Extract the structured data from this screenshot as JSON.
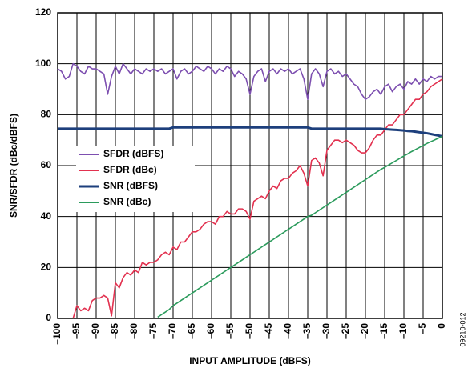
{
  "chart_data": {
    "type": "line",
    "xlabel": "INPUT AMPLITUDE (dBFS)",
    "ylabel": "SNR/SFDR (dBc/dBFS)",
    "annotation": "09210-012",
    "xlim": [
      -100,
      0
    ],
    "ylim": [
      0,
      120
    ],
    "grid": true,
    "legend": "left",
    "xticks": [
      {
        "value": -100,
        "label": "–100"
      },
      {
        "value": -95,
        "label": "–95"
      },
      {
        "value": -90,
        "label": "–90"
      },
      {
        "value": -85,
        "label": "–85"
      },
      {
        "value": -80,
        "label": "–80"
      },
      {
        "value": -75,
        "label": "–75"
      },
      {
        "value": -70,
        "label": "–70"
      },
      {
        "value": -65,
        "label": "–65"
      },
      {
        "value": -60,
        "label": "–60"
      },
      {
        "value": -55,
        "label": "–55"
      },
      {
        "value": -50,
        "label": "–50"
      },
      {
        "value": -45,
        "label": "–45"
      },
      {
        "value": -40,
        "label": "–40"
      },
      {
        "value": -35,
        "label": "–35"
      },
      {
        "value": -30,
        "label": "–30"
      },
      {
        "value": -25,
        "label": "–25"
      },
      {
        "value": -20,
        "label": "–20"
      },
      {
        "value": -15,
        "label": "–15"
      },
      {
        "value": -10,
        "label": "–10"
      },
      {
        "value": -5,
        "label": "–5"
      },
      0
    ],
    "yticks": [
      0,
      20,
      40,
      60,
      80,
      100,
      120
    ],
    "x": [
      -100,
      -99,
      -98,
      -97,
      -96,
      -95,
      -94,
      -93,
      -92,
      -91,
      -90,
      -89,
      -88,
      -87,
      -86,
      -85,
      -84,
      -83,
      -82,
      -81,
      -80,
      -79,
      -78,
      -77,
      -76,
      -75,
      -74,
      -73,
      -72,
      -71,
      -70,
      -69,
      -68,
      -67,
      -66,
      -65,
      -64,
      -63,
      -62,
      -61,
      -60,
      -59,
      -58,
      -57,
      -56,
      -55,
      -54,
      -53,
      -52,
      -51,
      -50,
      -49,
      -48,
      -47,
      -46,
      -45,
      -44,
      -43,
      -42,
      -41,
      -40,
      -39,
      -38,
      -37,
      -36,
      -35,
      -34,
      -33,
      -32,
      -31,
      -30,
      -29,
      -28,
      -27,
      -26,
      -25,
      -24,
      -23,
      -22,
      -21,
      -20,
      -19,
      -18,
      -17,
      -16,
      -15,
      -14,
      -13,
      -12,
      -11,
      -10,
      -9,
      -8,
      -7,
      -6,
      -5,
      -4,
      -3,
      -2,
      -1,
      0
    ],
    "series": [
      {
        "name": "SFDR (dBFS)",
        "color": "#7d4fb0",
        "values": [
          98,
          97,
          94,
          95,
          100,
          99,
          97,
          96,
          99,
          98,
          98,
          97,
          96,
          88,
          95,
          99,
          96,
          100,
          98,
          96,
          98,
          97,
          96,
          98,
          97,
          98,
          97,
          98,
          96,
          97,
          98,
          94,
          97,
          98,
          96,
          97,
          99,
          98,
          97,
          99,
          98,
          96,
          98,
          97,
          99,
          98,
          95,
          97,
          96,
          94,
          88,
          95,
          97,
          98,
          93,
          97,
          98,
          96,
          98,
          97,
          98,
          96,
          97,
          98,
          94,
          86,
          96,
          98,
          96,
          91,
          97,
          98,
          96,
          97,
          95,
          96,
          94,
          92,
          91,
          88,
          86,
          87,
          89,
          90,
          88,
          91,
          92,
          89,
          91,
          92,
          90,
          93,
          92,
          94,
          92,
          94,
          93,
          95,
          94,
          95,
          95
        ]
      },
      {
        "name": "SFDR (dBc)",
        "color": "#e2314f",
        "values": [
          null,
          null,
          null,
          null,
          0,
          5,
          3,
          4,
          3,
          7,
          8,
          8,
          9,
          8,
          1,
          14,
          12,
          16,
          18,
          17,
          19,
          18,
          22,
          21,
          22,
          22,
          23,
          25,
          26,
          25,
          28,
          27,
          30,
          30,
          32,
          34,
          34,
          35,
          37,
          38,
          38,
          37,
          40,
          40,
          42,
          41,
          41,
          43,
          43,
          42,
          39,
          46,
          47,
          48,
          47,
          50,
          52,
          51,
          54,
          55,
          55,
          57,
          58,
          60,
          57,
          52,
          62,
          63,
          61,
          56,
          66,
          68,
          70,
          70,
          69,
          70,
          69,
          68,
          66,
          65,
          65,
          67,
          70,
          72,
          72,
          74,
          76,
          76,
          78,
          80,
          80,
          82,
          84,
          86,
          86,
          88,
          89,
          91,
          92,
          93,
          94
        ]
      },
      {
        "name": "SNR (dBFS)",
        "color": "#1d3f7c",
        "values": [
          74.5,
          74.5,
          74.5,
          74.5,
          74.5,
          74.5,
          74.5,
          74.5,
          74.5,
          74.5,
          74.5,
          74.5,
          74.5,
          74.5,
          74.5,
          74.5,
          74.5,
          74.5,
          74.5,
          74.5,
          74.5,
          74.5,
          74.5,
          74.5,
          74.5,
          74.5,
          74.5,
          74.5,
          74.5,
          74.5,
          75,
          75,
          75,
          75,
          75,
          75,
          75,
          75,
          75,
          75,
          75,
          75,
          75,
          75,
          75,
          75,
          75,
          75,
          75,
          75,
          75,
          75,
          75,
          75,
          75,
          75,
          75,
          75,
          75,
          75,
          75,
          75,
          75,
          75,
          75,
          75,
          74.5,
          74.5,
          74.5,
          74.5,
          74.5,
          74.5,
          74.5,
          74.5,
          74.5,
          74.5,
          74.5,
          74.5,
          74.5,
          74.5,
          74.5,
          74.5,
          74.5,
          74.5,
          74.5,
          74.3,
          74.2,
          74.1,
          74,
          73.9,
          73.8,
          73.6,
          73.5,
          73.3,
          73.1,
          72.9,
          72.7,
          72.4,
          72.1,
          71.8,
          71.5
        ]
      },
      {
        "name": "SNR (dBc)",
        "color": "#2b9b5c",
        "values": [
          null,
          null,
          null,
          null,
          null,
          null,
          null,
          null,
          null,
          null,
          null,
          null,
          null,
          null,
          null,
          null,
          null,
          null,
          null,
          null,
          null,
          null,
          null,
          null,
          null,
          null,
          0.5,
          1.5,
          2.5,
          3.5,
          5,
          6,
          7,
          8,
          9,
          10,
          11,
          12,
          13,
          14,
          15,
          16,
          17,
          18,
          19,
          20,
          21,
          22,
          23,
          24,
          25,
          26,
          27,
          28,
          29,
          30,
          31,
          32,
          33,
          34,
          35,
          36,
          37,
          38,
          39,
          40,
          40.5,
          41.5,
          42.5,
          43.5,
          44.5,
          45.5,
          46.5,
          47.5,
          48.5,
          49.5,
          50.5,
          51.5,
          52.5,
          53.5,
          54.5,
          55.5,
          56.5,
          57.5,
          58.5,
          59.3,
          60.2,
          61.1,
          62,
          62.9,
          63.8,
          64.6,
          65.5,
          66.3,
          67.1,
          67.9,
          68.7,
          69.4,
          70.1,
          70.8,
          71.5
        ]
      }
    ]
  }
}
